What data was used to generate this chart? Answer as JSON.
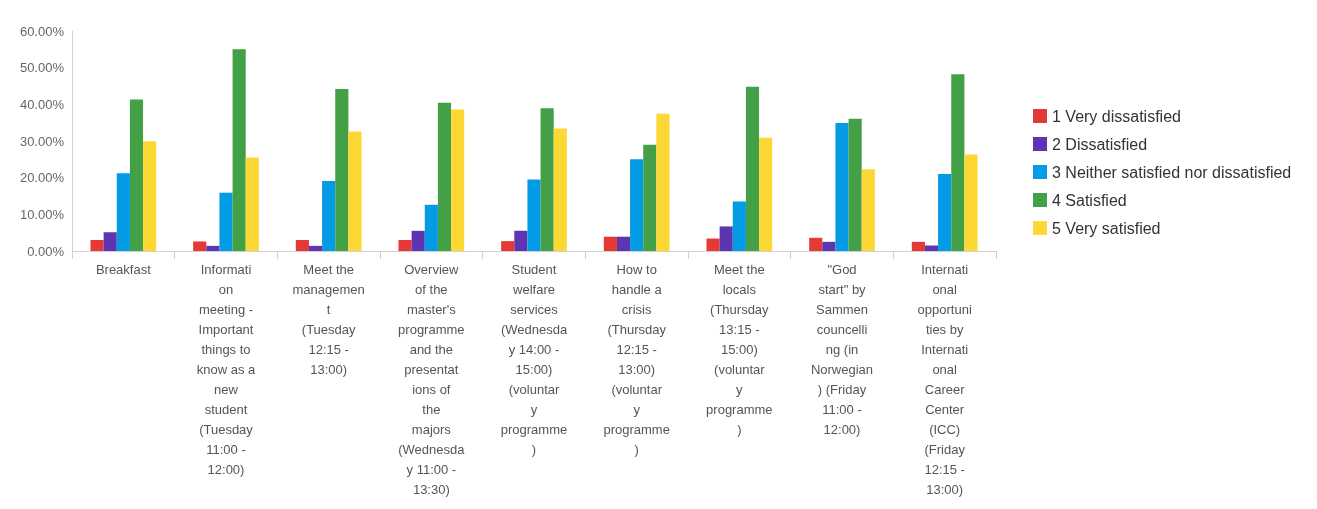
{
  "chart_data": {
    "type": "bar",
    "categories": [
      "Breakfast",
      "Information meeting - Important things to know as a new student (Tuesday 11:00 - 12:00)",
      "Meet the management (Tuesday 12:15 - 13:00)",
      "Overview of the master's programme and the presentations of the majors (Wednesday 11:00 - 13:30)",
      "Student welfare services (Wednesday 14:00 - 15:00) (voluntary programme)",
      "How to handle a crisis (Thursday 12:15 - 13:00) (voluntary programme)",
      "Meet the locals (Thursday 13:15 - 15:00) (voluntary programme)",
      "\"God start\" by Sammen councelling (in Norwegian) (Friday 11:00 - 12:00)",
      "International opportunities by International Career Center (ICC) (Friday 12:15 - 13:00)"
    ],
    "series": [
      {
        "name": "1 Very dissatisfied",
        "color": "#e53935",
        "values": [
          3.0,
          2.6,
          3.0,
          3.0,
          2.7,
          3.9,
          3.4,
          3.6,
          2.5
        ]
      },
      {
        "name": "2 Dissatisfied",
        "color": "#5e35b1",
        "values": [
          5.1,
          1.4,
          1.4,
          5.5,
          5.5,
          3.9,
          6.7,
          2.5,
          1.5
        ]
      },
      {
        "name": "3 Neither satisfied nor dissatisfied",
        "color": "#039be5",
        "values": [
          21.2,
          15.9,
          19.1,
          12.6,
          19.5,
          25.0,
          13.5,
          34.9,
          21.0
        ]
      },
      {
        "name": "4 Satisfied",
        "color": "#43a047",
        "values": [
          41.3,
          55.0,
          44.2,
          40.4,
          38.9,
          29.0,
          44.8,
          36.1,
          48.2
        ]
      },
      {
        "name": "5 Very satisfied",
        "color": "#fdd835",
        "values": [
          29.9,
          25.5,
          32.6,
          38.6,
          33.4,
          37.4,
          30.9,
          22.3,
          26.3
        ]
      }
    ],
    "ylim": [
      0,
      60
    ],
    "yticks": [
      {
        "value": 0,
        "label": "0.00%"
      },
      {
        "value": 10,
        "label": "10.00%"
      },
      {
        "value": 20,
        "label": "20.00%"
      },
      {
        "value": 30,
        "label": "30.00%"
      },
      {
        "value": 40,
        "label": "40.00%"
      },
      {
        "value": 50,
        "label": "50.00%"
      },
      {
        "value": 60,
        "label": "60.00%"
      }
    ],
    "grid": false,
    "legend": "right"
  }
}
